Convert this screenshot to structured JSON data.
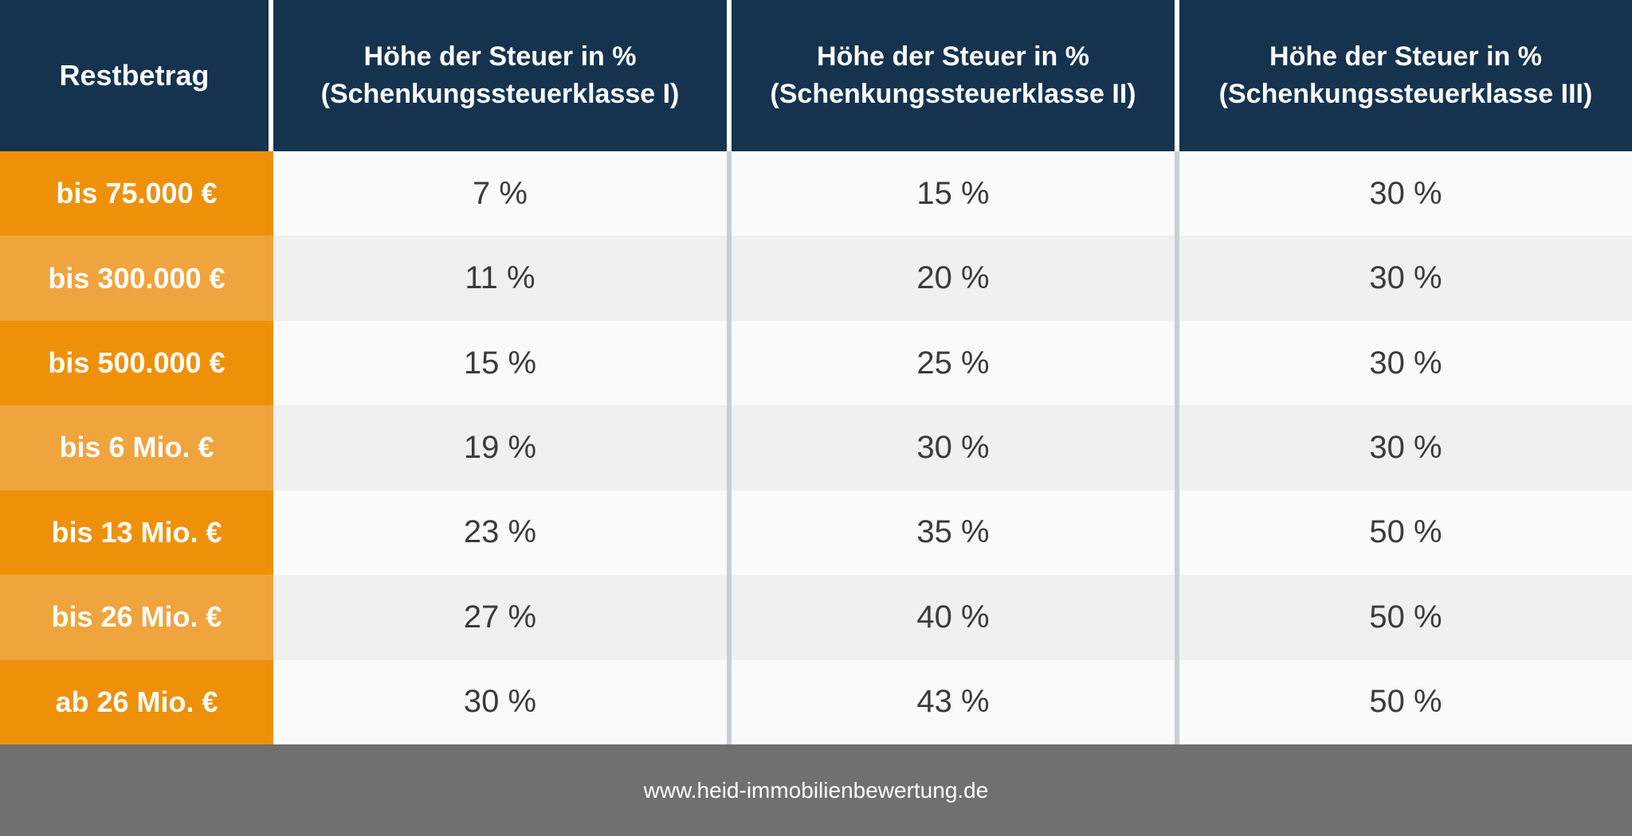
{
  "colors": {
    "header_bg": "#15334F",
    "header_text": "#FFFFFF",
    "row_label_bg_odd": "#EE9109",
    "row_label_bg_even": "#F0A43D",
    "cell_bg_odd": "#FAFAFA",
    "cell_bg_even": "#F0F0F0",
    "column_separator": "#C9CED6",
    "footer_bg": "#707070",
    "cell_text": "#3B3B3B"
  },
  "table": {
    "header": {
      "restbetrag": "Restbetrag",
      "klasse1": {
        "line1": "Höhe der Steuer in %",
        "line2": "(Schenkungssteuerklasse I)"
      },
      "klasse2": {
        "line1": "Höhe der Steuer in %",
        "line2": "(Schenkungssteuerklasse II)"
      },
      "klasse3": {
        "line1": "Höhe der Steuer in %",
        "line2": "(Schenkungssteuerklasse III)"
      }
    },
    "rows": [
      {
        "restbetrag": "bis 75.000 €",
        "klasse1": "7 %",
        "klasse2": "15 %",
        "klasse3": "30 %"
      },
      {
        "restbetrag": "bis 300.000 €",
        "klasse1": "11 %",
        "klasse2": "20 %",
        "klasse3": "30 %"
      },
      {
        "restbetrag": "bis 500.000 €",
        "klasse1": "15 %",
        "klasse2": "25 %",
        "klasse3": "30 %"
      },
      {
        "restbetrag": "bis 6 Mio. €",
        "klasse1": "19 %",
        "klasse2": "30 %",
        "klasse3": "30 %"
      },
      {
        "restbetrag": "bis 13 Mio. €",
        "klasse1": "23 %",
        "klasse2": "35 %",
        "klasse3": "50 %"
      },
      {
        "restbetrag": "bis 26 Mio. €",
        "klasse1": "27 %",
        "klasse2": "40 %",
        "klasse3": "50 %"
      },
      {
        "restbetrag": "ab 26 Mio. €",
        "klasse1": "30 %",
        "klasse2": "43 %",
        "klasse3": "50 %"
      }
    ]
  },
  "footer": {
    "url": "www.heid-immobilienbewertung.de"
  },
  "chart_data": {
    "type": "table",
    "columns": [
      "Restbetrag",
      "Höhe der Steuer in % (Schenkungssteuerklasse I)",
      "Höhe der Steuer in % (Schenkungssteuerklasse II)",
      "Höhe der Steuer in % (Schenkungssteuerklasse III)"
    ],
    "unit": "%",
    "rows": [
      [
        "bis 75.000 €",
        7,
        15,
        30
      ],
      [
        "bis 300.000 €",
        11,
        20,
        30
      ],
      [
        "bis 500.000 €",
        15,
        25,
        30
      ],
      [
        "bis 6 Mio. €",
        19,
        30,
        30
      ],
      [
        "bis 13 Mio. €",
        23,
        35,
        50
      ],
      [
        "bis 26 Mio. €",
        27,
        40,
        50
      ],
      [
        "ab 26 Mio. €",
        30,
        43,
        50
      ]
    ]
  }
}
